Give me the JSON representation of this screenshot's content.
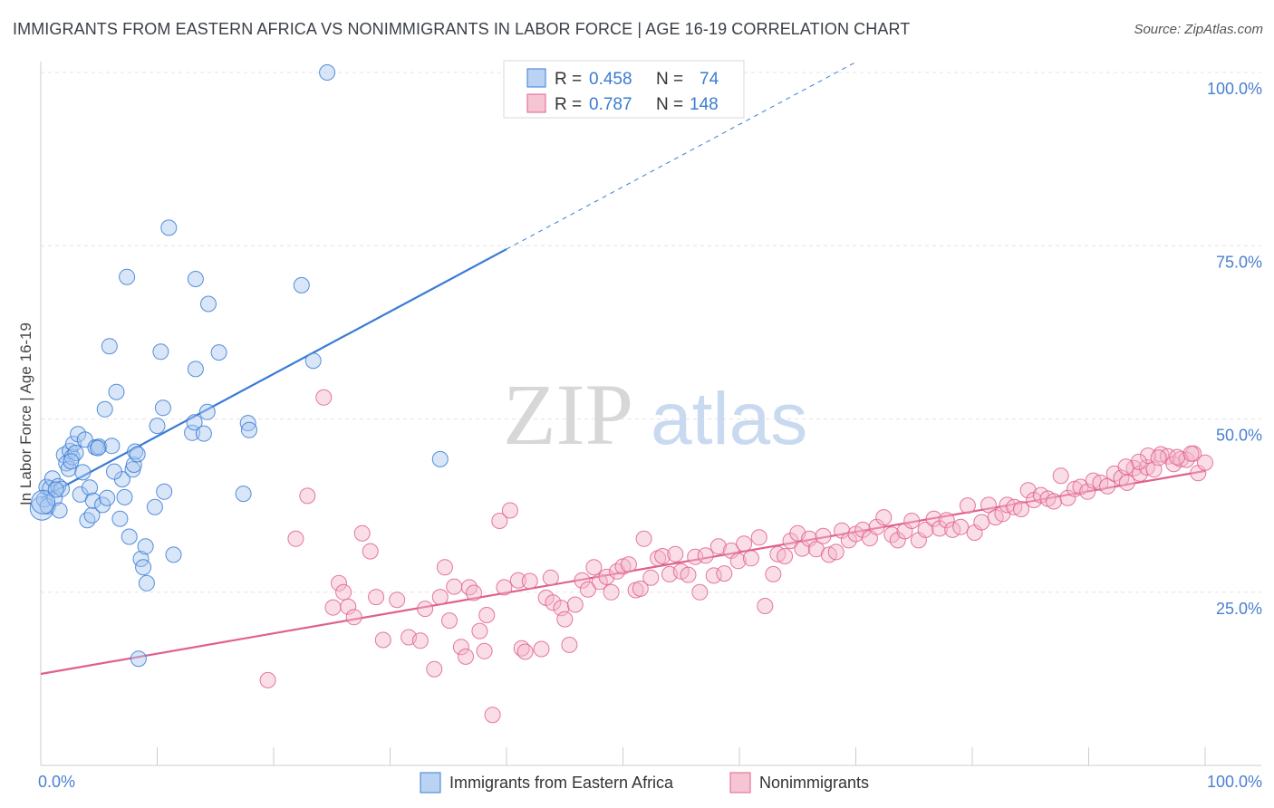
{
  "title": "IMMIGRANTS FROM EASTERN AFRICA VS NONIMMIGRANTS IN LABOR FORCE | AGE 16-19 CORRELATION CHART",
  "source": "Source: ZipAtlas.com",
  "watermark": {
    "zip": "ZIP",
    "atlas": "atlas"
  },
  "colors": {
    "blue": "#3a7bd5",
    "blue_fill": "#a9c8f0",
    "pink": "#e0608e",
    "pink_fill": "#f4b6c9",
    "grid": "#dddddd",
    "tick_text": "#4a7fd0"
  },
  "legend": {
    "rows": [
      {
        "r_label": "R = ",
        "r_value": "0.458",
        "n_label": "N = ",
        "n_value": "74"
      },
      {
        "r_label": "R = ",
        "r_value": "0.787",
        "n_label": "N = ",
        "n_value": "148"
      }
    ]
  },
  "chart_data": {
    "type": "scatter",
    "ylabel": "In Labor Force | Age 16-19",
    "xlabel": "",
    "x_tick_labels": [
      "0.0%",
      "100.0%"
    ],
    "y_tick_labels": [
      "25.0%",
      "50.0%",
      "75.0%",
      "100.0%"
    ],
    "xlim": [
      0,
      100
    ],
    "ylim": [
      0,
      102
    ],
    "grid": true,
    "legend_position": "top-center",
    "series": [
      {
        "name": "Immigrants from Eastern Africa",
        "color": "#3a7bd5",
        "trend": {
          "x0": 0,
          "y0": 38.5,
          "x1": 40,
          "y1": 74.5,
          "dashed_to_x": 70,
          "dashed_to_y": 101.5
        },
        "points": [
          [
            0.1,
            37.1
          ],
          [
            0.3,
            38.4
          ],
          [
            0.5,
            40.2
          ],
          [
            0.6,
            37.4
          ],
          [
            0.8,
            40.0
          ],
          [
            1.0,
            41.4
          ],
          [
            1.2,
            38.6
          ],
          [
            1.5,
            40.3
          ],
          [
            1.6,
            36.8
          ],
          [
            1.8,
            39.9
          ],
          [
            2.0,
            44.8
          ],
          [
            2.2,
            43.6
          ],
          [
            2.4,
            42.8
          ],
          [
            2.5,
            45.4
          ],
          [
            2.7,
            44.5
          ],
          [
            2.8,
            46.4
          ],
          [
            3.0,
            45.1
          ],
          [
            3.2,
            47.8
          ],
          [
            3.4,
            39.1
          ],
          [
            3.6,
            42.3
          ],
          [
            3.8,
            47.0
          ],
          [
            4.0,
            35.4
          ],
          [
            4.2,
            40.1
          ],
          [
            4.4,
            36.1
          ],
          [
            4.5,
            38.2
          ],
          [
            4.7,
            45.9
          ],
          [
            5.0,
            46.0
          ],
          [
            5.3,
            37.6
          ],
          [
            5.5,
            51.4
          ],
          [
            5.7,
            38.6
          ],
          [
            5.9,
            60.5
          ],
          [
            6.1,
            46.1
          ],
          [
            6.5,
            53.9
          ],
          [
            6.8,
            35.6
          ],
          [
            7.0,
            41.3
          ],
          [
            7.2,
            38.7
          ],
          [
            7.4,
            70.5
          ],
          [
            7.6,
            33.0
          ],
          [
            7.9,
            42.7
          ],
          [
            8.0,
            43.4
          ],
          [
            8.1,
            45.3
          ],
          [
            8.4,
            15.4
          ],
          [
            8.6,
            29.8
          ],
          [
            8.8,
            28.6
          ],
          [
            9.0,
            31.6
          ],
          [
            9.1,
            26.3
          ],
          [
            9.8,
            37.3
          ],
          [
            10.0,
            49.0
          ],
          [
            10.3,
            59.7
          ],
          [
            10.5,
            51.6
          ],
          [
            10.6,
            39.5
          ],
          [
            11.0,
            77.6
          ],
          [
            11.4,
            30.4
          ],
          [
            13.0,
            48.0
          ],
          [
            13.2,
            49.5
          ],
          [
            13.3,
            57.2
          ],
          [
            13.3,
            70.2
          ],
          [
            14.0,
            47.9
          ],
          [
            14.3,
            51.0
          ],
          [
            14.4,
            66.6
          ],
          [
            15.3,
            59.6
          ],
          [
            17.4,
            39.2
          ],
          [
            17.8,
            49.4
          ],
          [
            17.9,
            48.4
          ],
          [
            22.4,
            69.3
          ],
          [
            23.4,
            58.4
          ],
          [
            24.6,
            100.0
          ],
          [
            34.3,
            44.2
          ],
          [
            0.2,
            38.0
          ],
          [
            1.3,
            39.8
          ],
          [
            2.6,
            43.9
          ],
          [
            4.9,
            45.8
          ],
          [
            6.3,
            42.4
          ],
          [
            8.3,
            44.9
          ]
        ]
      },
      {
        "name": "Nonimmigrants",
        "color": "#e0608e",
        "trend": {
          "x0": 0,
          "y0": 13.2,
          "x1": 100,
          "y1": 42.5
        },
        "points": [
          [
            19.5,
            12.3
          ],
          [
            21.9,
            32.7
          ],
          [
            22.9,
            38.9
          ],
          [
            24.3,
            53.1
          ],
          [
            25.1,
            22.8
          ],
          [
            25.6,
            26.3
          ],
          [
            26.0,
            25.0
          ],
          [
            26.4,
            22.9
          ],
          [
            26.9,
            21.4
          ],
          [
            27.6,
            33.5
          ],
          [
            28.3,
            30.9
          ],
          [
            28.8,
            24.3
          ],
          [
            29.4,
            18.1
          ],
          [
            30.6,
            23.9
          ],
          [
            31.6,
            18.5
          ],
          [
            32.6,
            18.0
          ],
          [
            33.0,
            22.6
          ],
          [
            33.8,
            13.9
          ],
          [
            34.3,
            24.3
          ],
          [
            34.7,
            28.6
          ],
          [
            35.1,
            20.9
          ],
          [
            35.5,
            25.8
          ],
          [
            36.1,
            17.1
          ],
          [
            36.5,
            15.7
          ],
          [
            36.8,
            25.7
          ],
          [
            37.2,
            24.9
          ],
          [
            37.7,
            19.4
          ],
          [
            38.1,
            16.5
          ],
          [
            38.3,
            21.7
          ],
          [
            38.8,
            7.3
          ],
          [
            39.4,
            35.3
          ],
          [
            39.8,
            25.7
          ],
          [
            40.3,
            36.8
          ],
          [
            41.0,
            26.7
          ],
          [
            41.3,
            16.9
          ],
          [
            41.6,
            16.4
          ],
          [
            42.0,
            26.6
          ],
          [
            43.0,
            16.8
          ],
          [
            43.4,
            24.2
          ],
          [
            43.8,
            27.1
          ],
          [
            44.0,
            23.5
          ],
          [
            44.7,
            22.7
          ],
          [
            45.0,
            21.1
          ],
          [
            45.4,
            17.4
          ],
          [
            45.9,
            23.2
          ],
          [
            46.5,
            26.7
          ],
          [
            47.0,
            25.4
          ],
          [
            47.5,
            28.6
          ],
          [
            48.0,
            26.5
          ],
          [
            48.6,
            27.2
          ],
          [
            49.0,
            25.0
          ],
          [
            49.5,
            28.0
          ],
          [
            50.0,
            28.7
          ],
          [
            50.5,
            29.0
          ],
          [
            51.1,
            25.3
          ],
          [
            51.5,
            25.5
          ],
          [
            51.8,
            32.7
          ],
          [
            52.4,
            27.1
          ],
          [
            53.0,
            29.9
          ],
          [
            53.4,
            30.2
          ],
          [
            54.0,
            27.6
          ],
          [
            54.5,
            30.5
          ],
          [
            55.0,
            28.0
          ],
          [
            55.6,
            27.5
          ],
          [
            56.2,
            30.1
          ],
          [
            56.6,
            25.0
          ],
          [
            57.1,
            30.3
          ],
          [
            57.8,
            27.4
          ],
          [
            58.2,
            31.6
          ],
          [
            58.7,
            27.7
          ],
          [
            59.3,
            31.0
          ],
          [
            59.9,
            29.5
          ],
          [
            60.4,
            32.0
          ],
          [
            61.0,
            29.9
          ],
          [
            61.7,
            32.9
          ],
          [
            62.2,
            23.0
          ],
          [
            62.9,
            27.6
          ],
          [
            63.3,
            30.5
          ],
          [
            63.9,
            30.2
          ],
          [
            64.4,
            32.4
          ],
          [
            65.0,
            33.5
          ],
          [
            65.4,
            31.3
          ],
          [
            66.0,
            32.7
          ],
          [
            66.6,
            31.2
          ],
          [
            67.2,
            33.1
          ],
          [
            67.7,
            30.4
          ],
          [
            68.3,
            30.8
          ],
          [
            68.8,
            33.9
          ],
          [
            69.4,
            32.5
          ],
          [
            70.0,
            33.4
          ],
          [
            70.6,
            34.0
          ],
          [
            71.2,
            32.8
          ],
          [
            71.8,
            34.4
          ],
          [
            72.4,
            35.8
          ],
          [
            73.1,
            33.3
          ],
          [
            73.6,
            32.5
          ],
          [
            74.2,
            33.8
          ],
          [
            74.8,
            35.3
          ],
          [
            75.4,
            32.5
          ],
          [
            76.0,
            34.0
          ],
          [
            76.7,
            35.6
          ],
          [
            77.2,
            34.2
          ],
          [
            77.8,
            35.4
          ],
          [
            78.3,
            34.0
          ],
          [
            79.0,
            34.4
          ],
          [
            79.6,
            37.5
          ],
          [
            80.2,
            33.6
          ],
          [
            80.8,
            35.1
          ],
          [
            81.4,
            37.6
          ],
          [
            82.0,
            35.8
          ],
          [
            82.6,
            36.3
          ],
          [
            83.0,
            37.6
          ],
          [
            83.6,
            37.3
          ],
          [
            84.2,
            37.0
          ],
          [
            84.8,
            39.7
          ],
          [
            85.3,
            38.3
          ],
          [
            85.9,
            39.0
          ],
          [
            86.5,
            38.5
          ],
          [
            87.0,
            38.1
          ],
          [
            87.6,
            41.8
          ],
          [
            88.2,
            38.6
          ],
          [
            88.8,
            39.9
          ],
          [
            89.3,
            40.2
          ],
          [
            89.9,
            39.5
          ],
          [
            90.4,
            41.1
          ],
          [
            91.0,
            40.8
          ],
          [
            91.6,
            40.3
          ],
          [
            92.2,
            42.1
          ],
          [
            92.8,
            41.5
          ],
          [
            93.3,
            40.8
          ],
          [
            93.9,
            42.9
          ],
          [
            94.4,
            42.1
          ],
          [
            95.0,
            43.0
          ],
          [
            95.6,
            42.7
          ],
          [
            96.2,
            44.9
          ],
          [
            96.8,
            44.6
          ],
          [
            97.3,
            43.5
          ],
          [
            97.9,
            44.2
          ],
          [
            98.4,
            44.1
          ],
          [
            99.0,
            45.0
          ],
          [
            99.4,
            42.2
          ],
          [
            100.0,
            43.7
          ],
          [
            95.1,
            44.7
          ],
          [
            96.0,
            44.4
          ],
          [
            97.6,
            44.5
          ],
          [
            98.8,
            45.0
          ],
          [
            94.3,
            43.8
          ],
          [
            93.2,
            43.1
          ]
        ]
      }
    ]
  }
}
